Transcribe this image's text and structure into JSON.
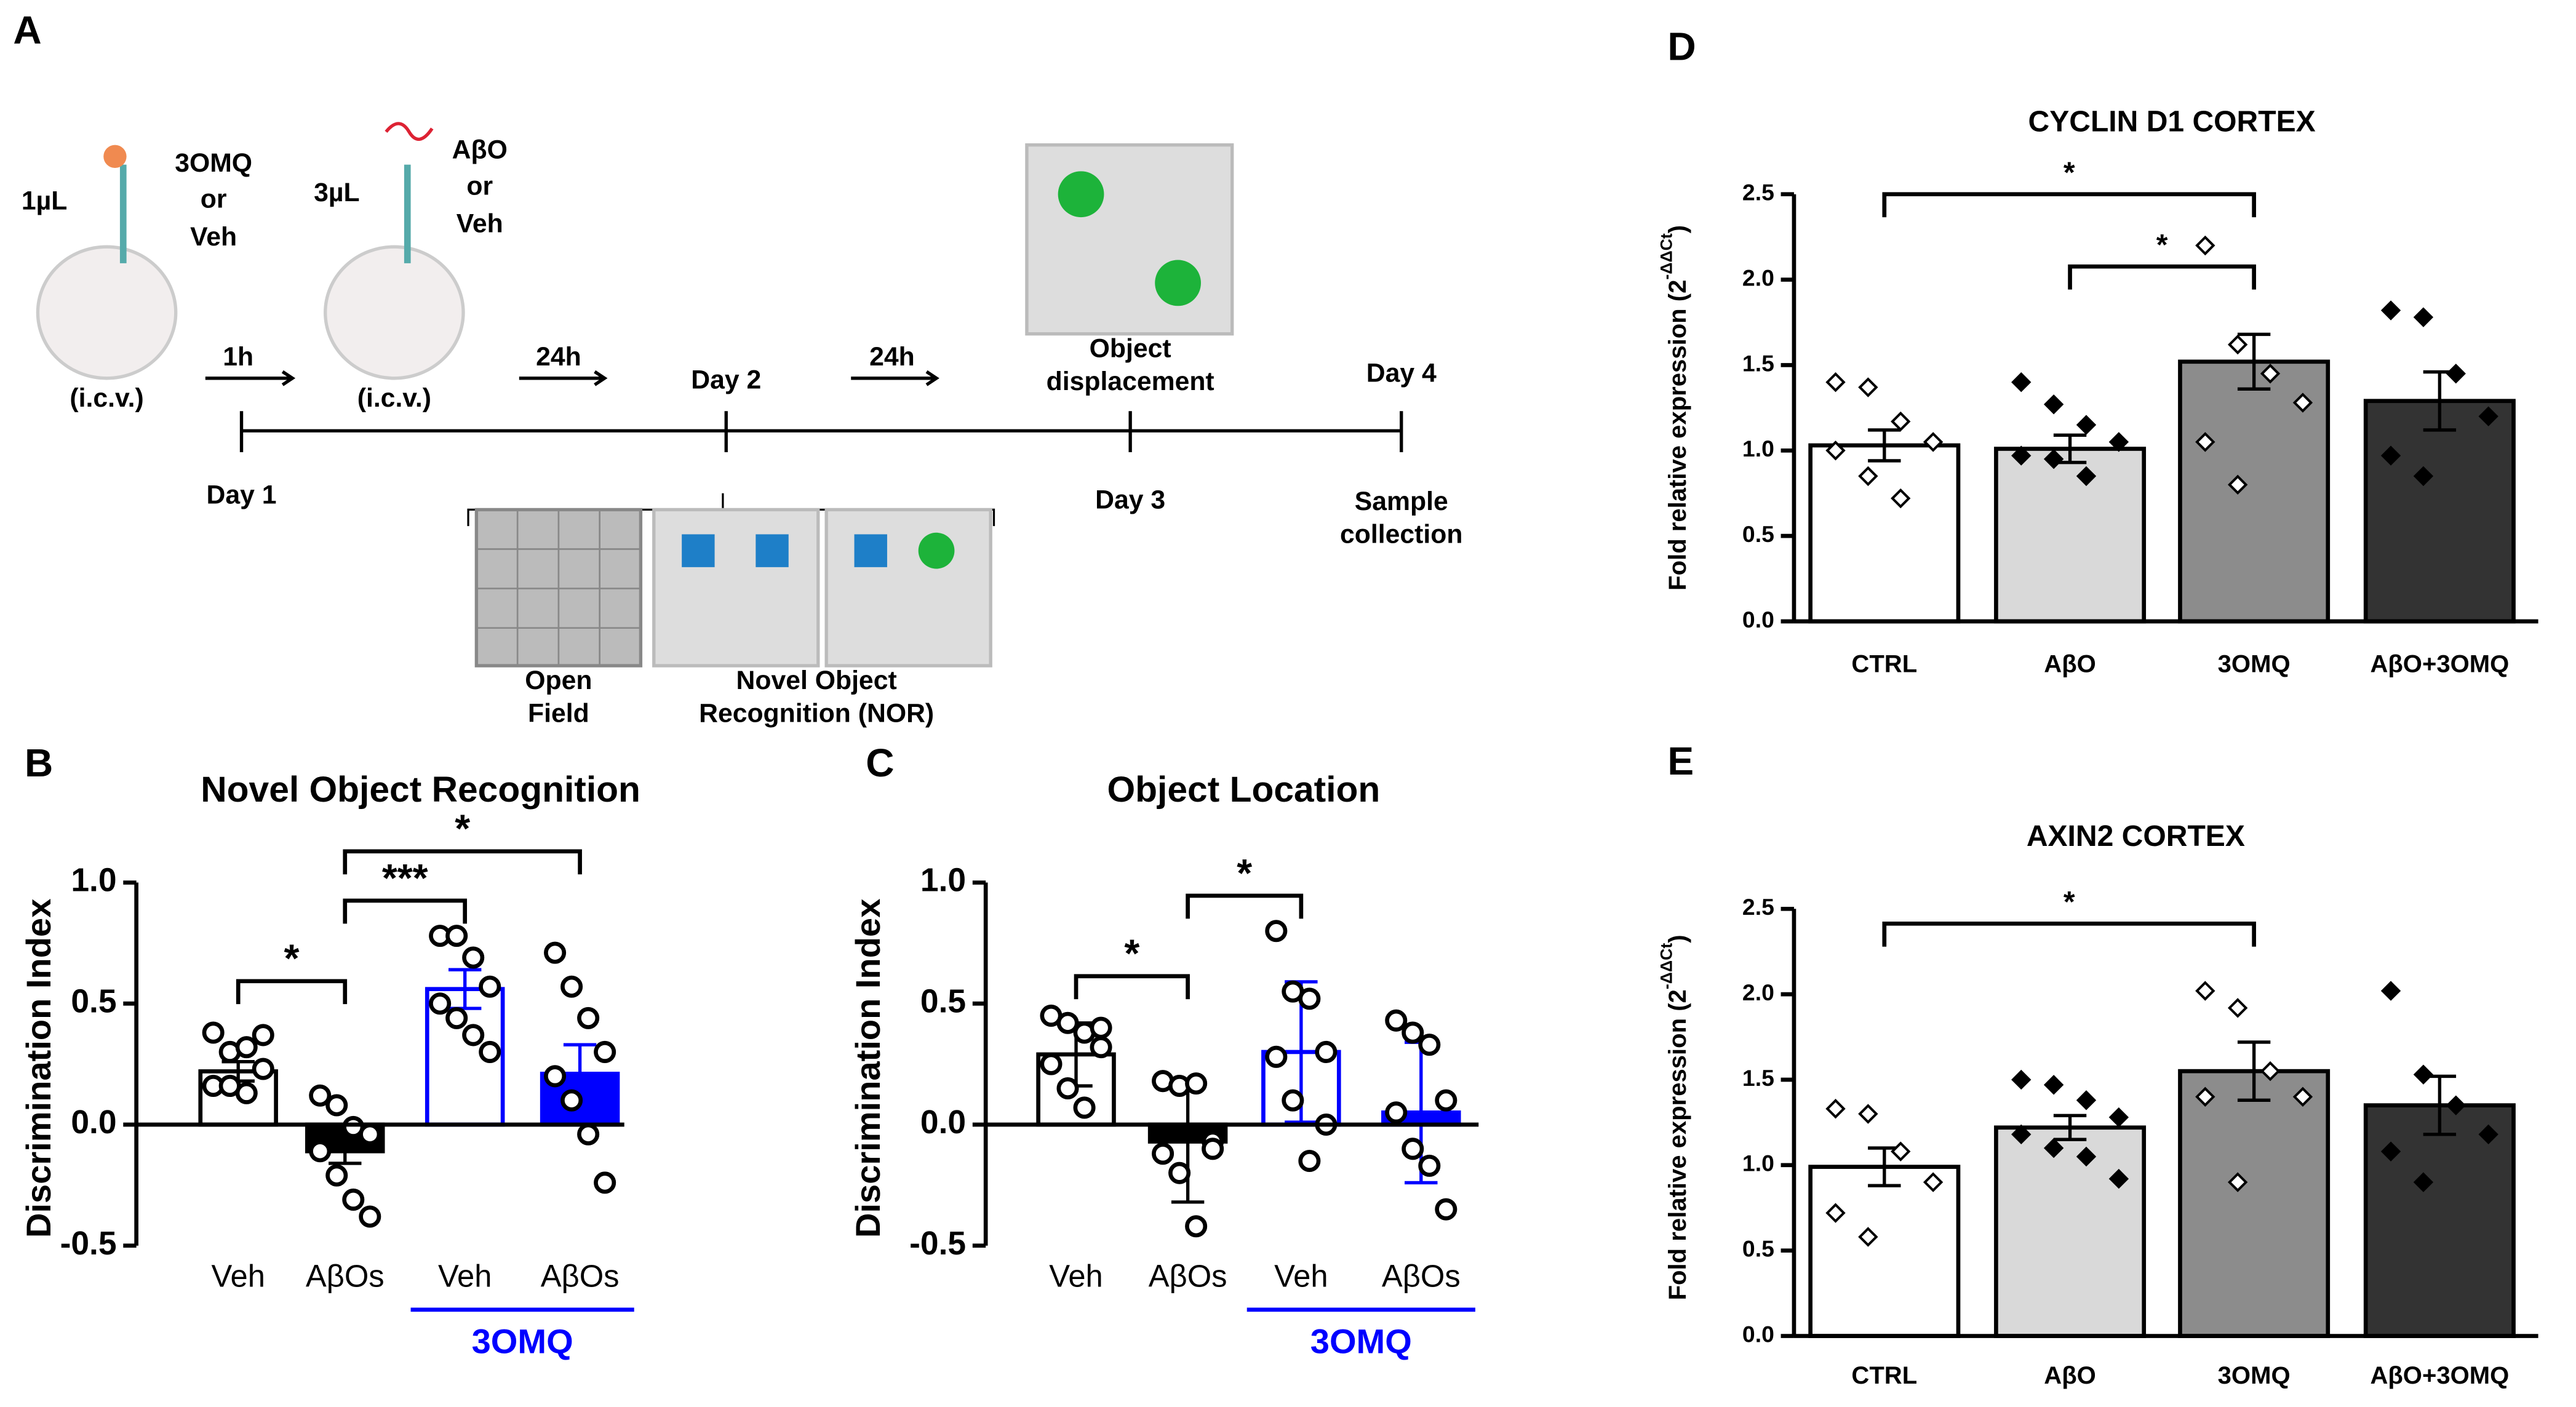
{
  "diagram": {
    "panel": "A",
    "labels": [
      "1µL",
      "3OMQ",
      "or",
      "Veh",
      "(i.c.v.)",
      "1h",
      "3µL",
      "AβO",
      "or",
      "Veh",
      "(i.c.v.)",
      "24h",
      "Day 2",
      "24h",
      "Object",
      "displacement",
      "Day 4",
      "Day 1",
      "Day 3",
      "Sample",
      "collection",
      "Open",
      "Field",
      "Novel Object",
      "Recognition (NOR)"
    ]
  },
  "chart_data": [
    {
      "type": "bar",
      "panel": "B",
      "title": "Novel Object Recognition",
      "ylabel": "Discrimination Index",
      "categories": [
        "Veh",
        "AβOs",
        "Veh",
        "AβOs"
      ],
      "values": [
        0.22,
        -0.11,
        0.56,
        0.21
      ],
      "errors": [
        0.04,
        0.05,
        0.08,
        0.12
      ],
      "points": [
        [
          0.38,
          0.3,
          0.32,
          0.23,
          0.16,
          0.16,
          0.13,
          0.37
        ],
        [
          0.12,
          0.08,
          -0.01,
          -0.04,
          -0.11,
          -0.21,
          -0.31,
          -0.38
        ],
        [
          0.78,
          0.78,
          0.69,
          0.57,
          0.5,
          0.44,
          0.37,
          0.3
        ],
        [
          0.71,
          0.57,
          0.44,
          0.3,
          0.2,
          0.1,
          -0.04,
          -0.24
        ]
      ],
      "colors": [
        "#ffffff",
        "#000000",
        "#ffffff",
        "#0000ff"
      ],
      "strokes": [
        "#000000",
        "#000000",
        "#0000ff",
        "#0000ff"
      ],
      "marker": "circle",
      "marker_fill": [
        "none",
        "none",
        "none",
        "none"
      ],
      "ylim": [
        -0.5,
        1.0
      ],
      "yticks": [
        {
          "value": -0.5,
          "label": "-0.5"
        },
        {
          "value": 0,
          "label": "0.0"
        },
        {
          "value": 0.5,
          "label": "0.5"
        },
        {
          "value": 1,
          "label": "1.0"
        }
      ],
      "significance": [
        {
          "label": "*",
          "from": 0,
          "to": 1
        },
        {
          "label": "***",
          "from": 1,
          "to": 2
        },
        {
          "label": "*",
          "from": 1,
          "to": 3
        }
      ],
      "group": {
        "label": "3OMQ",
        "from": 2,
        "to": 3,
        "color": "#0000ff"
      }
    },
    {
      "type": "bar",
      "panel": "C",
      "title": "Object Location",
      "ylabel": "Discrimination Index",
      "categories": [
        "Veh",
        "AβOs",
        "Veh",
        "AβOs"
      ],
      "values": [
        0.29,
        -0.07,
        0.3,
        0.05
      ],
      "errors": [
        0.13,
        0.25,
        0.29,
        0.29
      ],
      "points": [
        [
          0.45,
          0.42,
          0.38,
          0.32,
          0.25,
          0.15,
          0.07,
          0.4
        ],
        [
          0.18,
          0.16,
          0.17,
          -0.07,
          -0.12,
          -0.2,
          -0.42,
          -0.1
        ],
        [
          0.8,
          0.55,
          0.52,
          0.3,
          0.28,
          0.1,
          -0.15,
          0.0
        ],
        [
          0.43,
          0.38,
          0.33,
          0.1,
          0.05,
          -0.1,
          -0.17,
          -0.35
        ]
      ],
      "colors": [
        "#ffffff",
        "#000000",
        "#ffffff",
        "#0000ff"
      ],
      "strokes": [
        "#000000",
        "#000000",
        "#0000ff",
        "#0000ff"
      ],
      "marker": "circle",
      "marker_fill": [
        "none",
        "none",
        "none",
        "none"
      ],
      "ylim": [
        -0.5,
        1.0
      ],
      "yticks": [
        {
          "value": -0.5,
          "label": "-0.5"
        },
        {
          "value": 0,
          "label": "0.0"
        },
        {
          "value": 0.5,
          "label": "0.5"
        },
        {
          "value": 1,
          "label": "1.0"
        }
      ],
      "significance": [
        {
          "label": "*",
          "from": 0,
          "to": 1
        },
        {
          "label": "*",
          "from": 1,
          "to": 2
        }
      ],
      "group": {
        "label": "3OMQ",
        "from": 2,
        "to": 3,
        "color": "#0000ff"
      }
    },
    {
      "type": "bar",
      "panel": "D",
      "title": "CYCLIN D1 CORTEX",
      "ylabel": "Fold relative expression (2",
      "ylabel_sup": "-ΔΔCt",
      "ylabel_end": ")",
      "categories": [
        "CTRL",
        "AβO",
        "3OMQ",
        "AβO+3OMQ"
      ],
      "values": [
        1.03,
        1.01,
        1.52,
        1.29
      ],
      "errors": [
        0.09,
        0.08,
        0.16,
        0.17
      ],
      "points": [
        [
          1.4,
          1.37,
          1.17,
          1.05,
          1.0,
          0.85,
          0.72
        ],
        [
          1.4,
          1.27,
          1.15,
          1.05,
          0.97,
          0.95,
          0.85
        ],
        [
          2.2,
          1.62,
          1.45,
          1.28,
          1.05,
          0.8
        ],
        [
          1.82,
          1.78,
          1.45,
          1.2,
          0.97,
          0.85
        ]
      ],
      "colors": [
        "#ffffff",
        "#d9d9d9",
        "#8c8c8c",
        "#333333"
      ],
      "strokes": [
        "#000000",
        "#000000",
        "#000000",
        "#000000"
      ],
      "marker": "diamond",
      "marker_fill": [
        "#ffffff",
        "#000000",
        "#ffffff",
        "#000000"
      ],
      "ylim": [
        0,
        2.5
      ],
      "yticks": [
        {
          "value": 0,
          "label": "0.0"
        },
        {
          "value": 0.5,
          "label": "0.5"
        },
        {
          "value": 1,
          "label": "1.0"
        },
        {
          "value": 1.5,
          "label": "1.5"
        },
        {
          "value": 2,
          "label": "2.0"
        },
        {
          "value": 2.5,
          "label": "2.5"
        }
      ],
      "significance": [
        {
          "label": "*",
          "from": 0,
          "to": 2
        },
        {
          "label": "*",
          "from": 1,
          "to": 2
        }
      ]
    },
    {
      "type": "bar",
      "panel": "E",
      "title": "AXIN2 CORTEX",
      "ylabel": "Fold relative expression (2",
      "ylabel_sup": "-ΔΔCt",
      "ylabel_end": ")",
      "categories": [
        "CTRL",
        "AβO",
        "3OMQ",
        "AβO+3OMQ"
      ],
      "values": [
        0.99,
        1.22,
        1.55,
        1.35
      ],
      "errors": [
        0.11,
        0.07,
        0.17,
        0.17
      ],
      "points": [
        [
          1.33,
          1.3,
          1.08,
          0.9,
          0.72,
          0.58
        ],
        [
          1.5,
          1.47,
          1.38,
          1.28,
          1.18,
          1.1,
          1.05,
          0.92
        ],
        [
          2.02,
          1.92,
          1.55,
          1.4,
          1.4,
          0.9
        ],
        [
          2.02,
          1.53,
          1.35,
          1.18,
          1.08,
          0.9
        ]
      ],
      "colors": [
        "#ffffff",
        "#d9d9d9",
        "#8c8c8c",
        "#333333"
      ],
      "strokes": [
        "#000000",
        "#000000",
        "#000000",
        "#000000"
      ],
      "marker": "diamond",
      "marker_fill": [
        "#ffffff",
        "#000000",
        "#ffffff",
        "#000000"
      ],
      "ylim": [
        0,
        2.5
      ],
      "yticks": [
        {
          "value": 0,
          "label": "0.0"
        },
        {
          "value": 0.5,
          "label": "0.5"
        },
        {
          "value": 1,
          "label": "1.0"
        },
        {
          "value": 1.5,
          "label": "1.5"
        },
        {
          "value": 2,
          "label": "2.0"
        },
        {
          "value": 2.5,
          "label": "2.5"
        }
      ],
      "significance": [
        {
          "label": "*",
          "from": 0,
          "to": 2
        }
      ]
    }
  ]
}
